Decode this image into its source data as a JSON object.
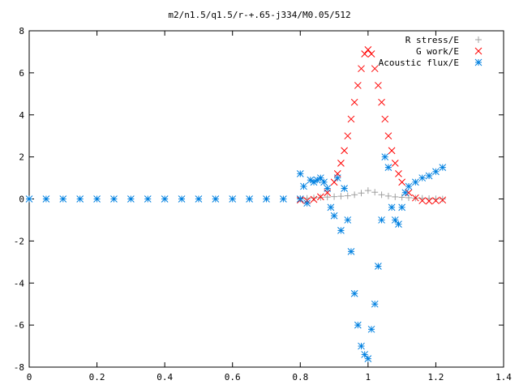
{
  "chart_data": {
    "type": "scatter",
    "title": "m2/n1.5/q1.5/r-+.65-j334/M0.05/512",
    "xlabel": "",
    "ylabel": "",
    "xlim": [
      0,
      1.4
    ],
    "ylim": [
      -8,
      8
    ],
    "grid": false,
    "legend_position": "top-right",
    "x_ticks": [
      0,
      0.2,
      0.4,
      0.6,
      0.8,
      1,
      1.2,
      1.4
    ],
    "x_tick_labels": [
      "0",
      "0.2",
      "0.4",
      "0.6",
      "0.8",
      "1",
      "1.2",
      "1.4"
    ],
    "y_ticks": [
      -8,
      -6,
      -4,
      -2,
      0,
      2,
      4,
      6,
      8
    ],
    "y_tick_labels": [
      "-8",
      "-6",
      "-4",
      "-2",
      "0",
      "2",
      "4",
      "6",
      "8"
    ],
    "series": [
      {
        "name": "R stress/E",
        "marker": "plus",
        "color": "#a0a0a0",
        "x": [
          0.8,
          0.82,
          0.84,
          0.86,
          0.88,
          0.9,
          0.92,
          0.94,
          0.96,
          0.98,
          1.0,
          1.02,
          1.04,
          1.06,
          1.08,
          1.1,
          1.12,
          1.14,
          1.16,
          1.18,
          1.2,
          1.22
        ],
        "y": [
          0.02,
          0.03,
          0.05,
          0.07,
          0.09,
          0.11,
          0.13,
          0.15,
          0.2,
          0.28,
          0.4,
          0.32,
          0.2,
          0.14,
          0.1,
          0.08,
          0.06,
          0.04,
          0.03,
          0.02,
          0.01,
          0.0
        ]
      },
      {
        "name": "G work/E",
        "marker": "cross",
        "color": "#ff0000",
        "x": [
          0.8,
          0.82,
          0.84,
          0.86,
          0.88,
          0.9,
          0.91,
          0.92,
          0.93,
          0.94,
          0.95,
          0.96,
          0.97,
          0.98,
          0.99,
          1.0,
          1.01,
          1.02,
          1.03,
          1.04,
          1.05,
          1.06,
          1.07,
          1.08,
          1.09,
          1.1,
          1.12,
          1.14,
          1.16,
          1.18,
          1.2,
          1.22
        ],
        "y": [
          -0.05,
          -0.08,
          -0.02,
          0.1,
          0.3,
          0.8,
          1.2,
          1.7,
          2.3,
          3.0,
          3.8,
          4.6,
          5.4,
          6.2,
          6.9,
          7.1,
          6.9,
          6.2,
          5.4,
          4.6,
          3.8,
          3.0,
          2.3,
          1.7,
          1.2,
          0.8,
          0.3,
          0.05,
          -0.08,
          -0.1,
          -0.08,
          -0.05
        ]
      },
      {
        "name": "Acoustic flux/E",
        "marker": "asterisk",
        "color": "#0080e0",
        "x": [
          0.0,
          0.05,
          0.1,
          0.15,
          0.2,
          0.25,
          0.3,
          0.35,
          0.4,
          0.45,
          0.5,
          0.55,
          0.6,
          0.65,
          0.7,
          0.75,
          0.8,
          0.8,
          0.81,
          0.82,
          0.83,
          0.84,
          0.85,
          0.86,
          0.87,
          0.88,
          0.89,
          0.9,
          0.91,
          0.92,
          0.93,
          0.94,
          0.95,
          0.96,
          0.97,
          0.98,
          0.99,
          1.0,
          1.01,
          1.02,
          1.03,
          1.04,
          1.05,
          1.06,
          1.07,
          1.08,
          1.09,
          1.1,
          1.11,
          1.12,
          1.14,
          1.16,
          1.18,
          1.2,
          1.22
        ],
        "y": [
          0,
          0,
          0,
          0,
          0,
          0,
          0,
          0,
          0,
          0,
          0,
          0,
          0,
          0,
          0,
          0,
          0,
          1.2,
          0.6,
          -0.2,
          0.9,
          0.8,
          0.9,
          1.0,
          0.8,
          0.5,
          -0.4,
          -0.8,
          1.0,
          -1.5,
          0.5,
          -1.0,
          -2.5,
          -4.5,
          -6.0,
          -7.0,
          -7.4,
          -7.6,
          -6.2,
          -5.0,
          -3.2,
          -1.0,
          2.0,
          1.5,
          -0.4,
          -1.0,
          -1.2,
          -0.4,
          0.3,
          0.6,
          0.8,
          1.0,
          1.1,
          1.3,
          1.5
        ]
      }
    ]
  }
}
